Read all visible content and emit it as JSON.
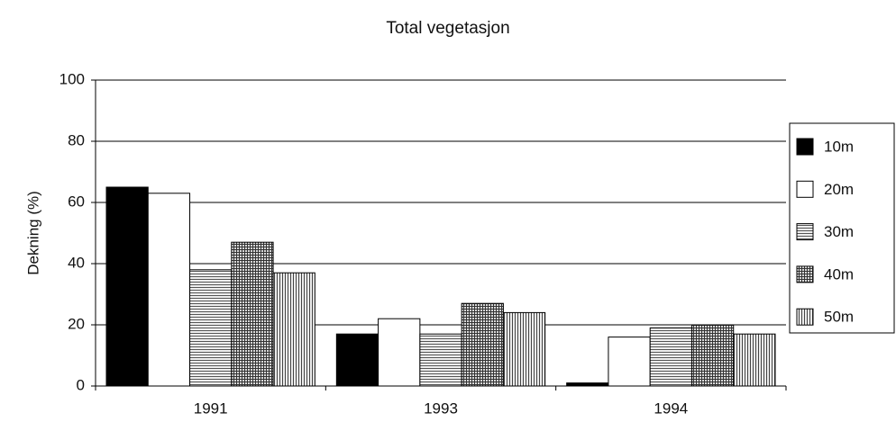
{
  "chart_data": {
    "type": "bar",
    "title": "Total vegetasjon",
    "y_label": "Dekning (%)",
    "categories": [
      "1991",
      "1993",
      "1994"
    ],
    "series": [
      {
        "name": "10m",
        "color": "#000000",
        "pattern": "solid",
        "values": [
          65,
          17,
          1
        ]
      },
      {
        "name": "20m",
        "color": "#ffffff",
        "pattern": "solid",
        "values": [
          63,
          22,
          16
        ]
      },
      {
        "name": "30m",
        "color": "#555555",
        "pattern": "horizontal",
        "values": [
          38,
          17,
          19
        ]
      },
      {
        "name": "40m",
        "color": "#333333",
        "pattern": "crosshatch",
        "values": [
          47,
          27,
          20
        ]
      },
      {
        "name": "50m",
        "color": "#444444",
        "pattern": "vertical",
        "values": [
          37,
          24,
          17
        ]
      }
    ],
    "ylim": [
      0,
      100
    ],
    "yticks": [
      0,
      20,
      40,
      60,
      80,
      100
    ],
    "grid": true,
    "legend": "right"
  }
}
